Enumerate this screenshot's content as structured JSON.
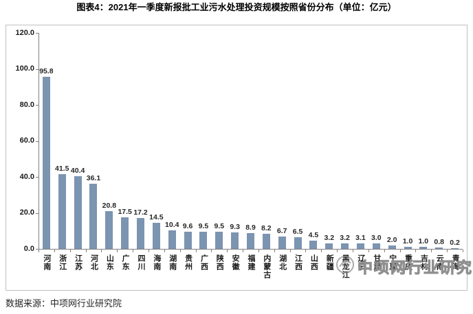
{
  "title": "图表4：2021年一季度新报批工业污水处理投资规模按照省份分布（单位：亿元）",
  "source": "数据来源：中项网行业研究院",
  "watermark": {
    "text": "中项网行业研究院"
  },
  "colors": {
    "bar": "#7b94b0",
    "axis": "#7f7f7f",
    "frame_border": "#bfbfbf",
    "text": "#1a1a1a",
    "watermark": "#8f8f8f"
  },
  "chart_data": {
    "type": "bar",
    "title": "图表4：2021年一季度新报批工业污水处理投资规模按照省份分布（单位：亿元）",
    "unit": "亿元",
    "xlabel": "",
    "ylabel": "",
    "ylim": [
      0,
      120
    ],
    "ytick_step": 20,
    "yticks": [
      "120.0",
      "100.0",
      "80.0",
      "60.0",
      "40.0",
      "20.0",
      "0.0"
    ],
    "grid": false,
    "legend": false,
    "categories": [
      "河南",
      "浙江",
      "江苏",
      "河北",
      "山东",
      "广东",
      "四川",
      "海南",
      "湖南",
      "贵州",
      "广西",
      "陕西",
      "安徽",
      "福建",
      "内蒙古",
      "湖北",
      "江西",
      "山西",
      "新疆",
      "黑龙江",
      "辽宁",
      "甘肃",
      "宁夏",
      "重庆",
      "吉林",
      "云南",
      "青海"
    ],
    "values": [
      95.8,
      41.5,
      40.4,
      36.1,
      20.8,
      17.5,
      17.2,
      14.5,
      10.4,
      9.6,
      9.5,
      9.5,
      9.3,
      8.9,
      8.2,
      6.7,
      6.5,
      4.5,
      3.2,
      3.2,
      3.1,
      3.0,
      2.0,
      1.0,
      1.0,
      0.8,
      0.2
    ]
  }
}
